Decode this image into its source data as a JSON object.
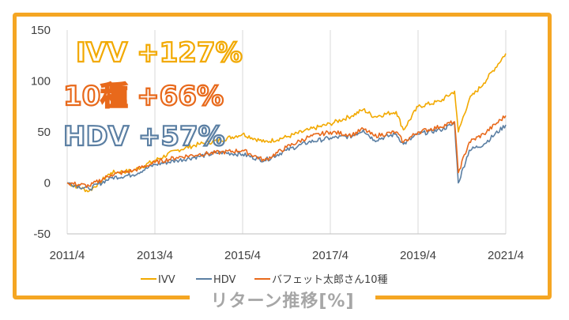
{
  "caption": "リターン推移[%]",
  "colors": {
    "frame": "#f5a623",
    "ivv": "#f2a900",
    "hdv": "#5b7fa3",
    "ten": "#e8691b",
    "grid": "#d9d9d9"
  },
  "chart_data": {
    "type": "line",
    "title": "リターン推移[%]",
    "xlabel": "",
    "ylabel": "",
    "ylim": [
      -50,
      150
    ],
    "yticks": [
      "150",
      "100",
      "50",
      "0",
      "-50"
    ],
    "xticks": [
      "2011/4",
      "2013/4",
      "2015/4",
      "2017/4",
      "2019/4",
      "2021/4"
    ],
    "grid": "vertical",
    "legend_position": "bottom",
    "annotations": [
      {
        "text": "IVV +127%",
        "series": "IVV"
      },
      {
        "text": "10種 +66%",
        "series": "バフェット太郎さん10種"
      },
      {
        "text": "HDV +57%",
        "series": "HDV"
      }
    ],
    "series": [
      {
        "name": "IVV",
        "key": "ivv",
        "x": [
          "2011/4",
          "2011/10",
          "2012/4",
          "2012/10",
          "2013/4",
          "2013/10",
          "2014/4",
          "2014/10",
          "2015/4",
          "2015/10",
          "2016/4",
          "2016/10",
          "2017/4",
          "2017/10",
          "2018/1",
          "2018/4",
          "2018/10",
          "2018/12",
          "2019/4",
          "2019/10",
          "2020/2",
          "2020/3",
          "2020/6",
          "2020/10",
          "2021/4"
        ],
        "values": [
          0,
          -8,
          10,
          12,
          22,
          32,
          38,
          42,
          48,
          40,
          45,
          52,
          58,
          66,
          72,
          65,
          70,
          52,
          75,
          80,
          90,
          50,
          82,
          98,
          127
        ]
      },
      {
        "name": "HDV",
        "key": "hdv",
        "x": [
          "2011/4",
          "2011/10",
          "2012/4",
          "2012/10",
          "2013/4",
          "2013/10",
          "2014/4",
          "2014/10",
          "2015/4",
          "2015/10",
          "2016/4",
          "2016/10",
          "2017/4",
          "2017/10",
          "2018/1",
          "2018/4",
          "2018/10",
          "2018/12",
          "2019/4",
          "2019/10",
          "2020/2",
          "2020/3",
          "2020/6",
          "2020/10",
          "2021/4"
        ],
        "values": [
          0,
          -6,
          5,
          8,
          18,
          22,
          26,
          30,
          28,
          22,
          32,
          40,
          44,
          46,
          52,
          42,
          48,
          38,
          48,
          52,
          58,
          0,
          32,
          38,
          57
        ]
      },
      {
        "name": "バフェット太郎さん10種",
        "key": "ten",
        "x": [
          "2011/4",
          "2011/10",
          "2012/4",
          "2012/10",
          "2013/4",
          "2013/10",
          "2014/4",
          "2014/10",
          "2015/4",
          "2015/10",
          "2016/4",
          "2016/10",
          "2017/4",
          "2017/10",
          "2018/1",
          "2018/4",
          "2018/10",
          "2018/12",
          "2019/4",
          "2019/10",
          "2020/2",
          "2020/3",
          "2020/6",
          "2020/10",
          "2021/4"
        ],
        "values": [
          0,
          -3,
          8,
          12,
          20,
          25,
          28,
          30,
          32,
          22,
          35,
          45,
          50,
          47,
          53,
          46,
          50,
          40,
          50,
          55,
          60,
          10,
          40,
          48,
          66
        ]
      }
    ]
  }
}
